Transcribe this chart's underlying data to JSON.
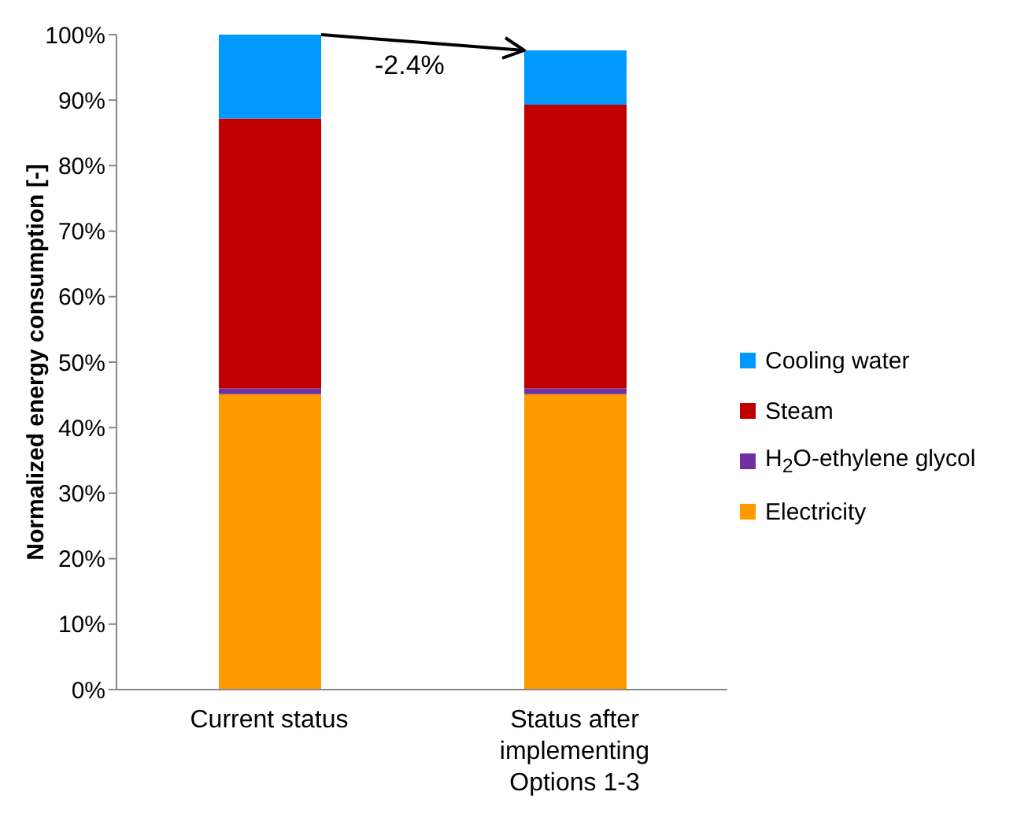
{
  "chart_data": {
    "type": "bar",
    "stacked": true,
    "ylabel": "Normalized energy consumption [-]",
    "categories": [
      "Current status",
      "Status after implementing Options 1-3"
    ],
    "series": [
      {
        "name": "Electricity",
        "color": "#ff9900",
        "values": [
          45.1,
          45.1
        ]
      },
      {
        "name": "H$_{2}$O-ethylene glycol",
        "color": "#7030a0",
        "values": [
          0.9,
          0.9
        ]
      },
      {
        "name": "Steam",
        "color": "#c00000",
        "values": [
          41.2,
          43.3
        ]
      },
      {
        "name": "Cooling water",
        "color": "#0099ff",
        "values": [
          12.8,
          8.3
        ]
      }
    ],
    "ylim": [
      0,
      100
    ],
    "yticks": [
      {
        "value": 0,
        "label": "0%"
      },
      {
        "value": 10,
        "label": "10%"
      },
      {
        "value": 20,
        "label": "20%"
      },
      {
        "value": 30,
        "label": "30%"
      },
      {
        "value": 40,
        "label": "40%"
      },
      {
        "value": 50,
        "label": "50%"
      },
      {
        "value": 60,
        "label": "60%"
      },
      {
        "value": 70,
        "label": "70%"
      },
      {
        "value": 80,
        "label": "80%"
      },
      {
        "value": 90,
        "label": "90%"
      },
      {
        "value": 100,
        "label": "100%"
      }
    ],
    "grid": false,
    "legend": "right",
    "annotations": [
      "-2.4%"
    ]
  }
}
